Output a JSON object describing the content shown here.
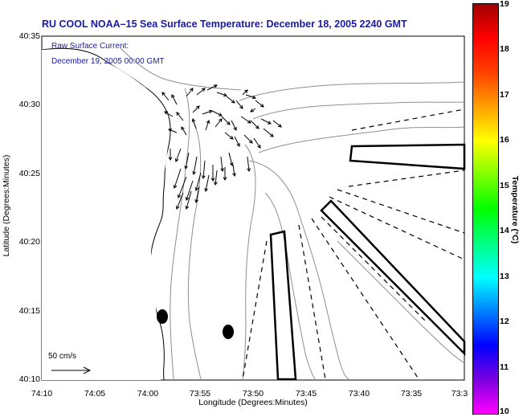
{
  "title": "RU COOL   NOAA–15  Sea Surface Temperature:  December 18, 2005 2240 GMT",
  "legend": {
    "line1": "Raw Surface Current:",
    "line2": "December 19, 2005 00:00 GMT"
  },
  "scale_label": "50 cm/s",
  "axes": {
    "xlabel": "Longitude (Degrees:Minutes)",
    "ylabel": "Latitude (Degrees:Minutes)",
    "x_ticks": [
      "74:10",
      "74:05",
      "74:00",
      "73:55",
      "73:50",
      "73:45",
      "73:40",
      "73:35",
      "73:3"
    ],
    "y_ticks": [
      "40:35",
      "40:30",
      "40:25",
      "40:20",
      "40:15",
      "40:10"
    ]
  },
  "colorbar": {
    "label": "Temperature (°C)",
    "ticks": [
      "19",
      "18",
      "17",
      "16",
      "15",
      "14",
      "13",
      "12",
      "11",
      "10"
    ],
    "range": [
      10,
      19
    ],
    "colors": [
      "#ff00ff",
      "#7a00e0",
      "#0000ff",
      "#0080ff",
      "#00ffff",
      "#00ff80",
      "#00ff00",
      "#80ff00",
      "#ffff00",
      "#ffa000",
      "#ff4000",
      "#ff0000",
      "#a00000"
    ]
  },
  "colors": {
    "title": "#1a1aa8",
    "coast": "#000000",
    "bathymetry": "#909090"
  }
}
